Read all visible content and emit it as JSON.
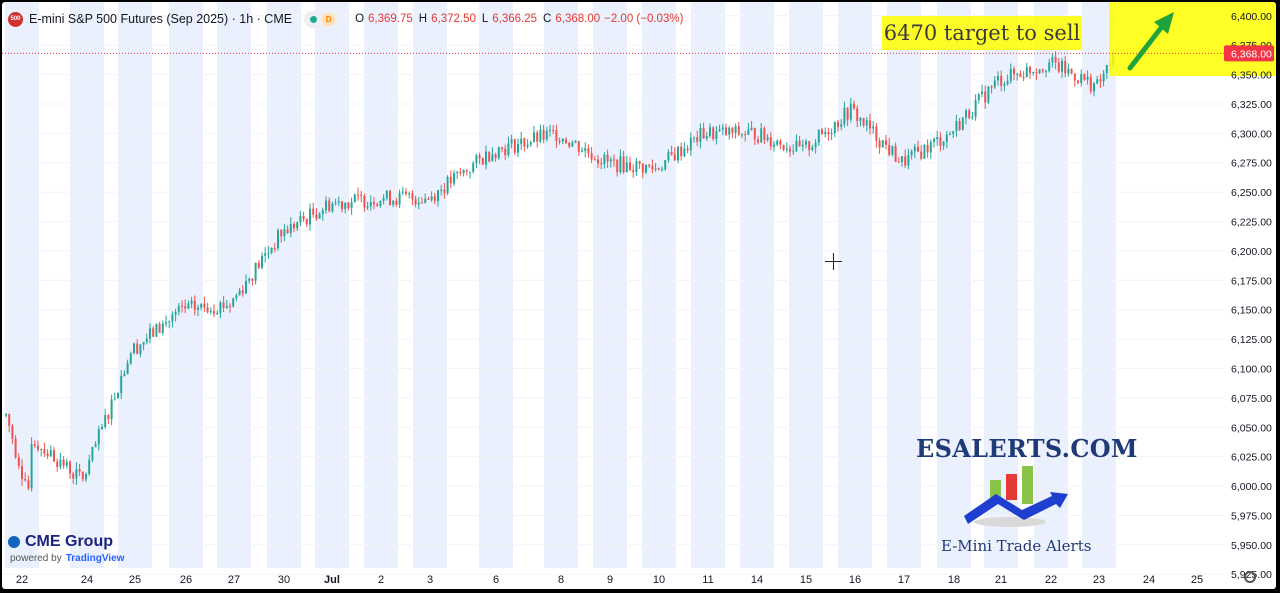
{
  "header": {
    "logo_text": "500",
    "title": "E-mini S&P 500 Futures (Sep 2025) · 1h · CME",
    "delay_badge": "D",
    "ohlc": [
      {
        "key": "O",
        "value": "6,369.75"
      },
      {
        "key": "H",
        "value": "6,372.50"
      },
      {
        "key": "L",
        "value": "6,366.25"
      },
      {
        "key": "C",
        "value": "6,368.00"
      }
    ],
    "change": "−2.00 (−0.03%)"
  },
  "annotation": {
    "text": "6470 target to sell",
    "highlight_color": "#ffff00",
    "arrow_color": "#1fa33a"
  },
  "branding": {
    "site": "ESALERTS.COM",
    "tagline": "E-Mini Trade Alerts",
    "data_provider": "CME Group",
    "powered_by": "powered by",
    "platform": "TradingView"
  },
  "price_label": "6,368.00",
  "colors": {
    "up": "#26a69a",
    "down": "#ef5350",
    "session_band": "#eaf0fd",
    "price_label_bg": "#f23645"
  },
  "icons": [
    "cme-globe-icon",
    "tradingview-icon",
    "settings-gear-icon",
    "crosshair-icon",
    "arrow-up-right-icon"
  ],
  "chart_data": {
    "type": "candlestick",
    "timeframe": "1h",
    "price_axis": {
      "min": 5915,
      "max": 6410,
      "ticks": [
        "6,400.00",
        "6,375.00",
        "6,350.00",
        "6,325.00",
        "6,300.00",
        "6,275.00",
        "6,250.00",
        "6,225.00",
        "6,200.00",
        "6,175.00",
        "6,150.00",
        "6,125.00",
        "6,100.00",
        "6,075.00",
        "6,050.00",
        "6,025.00",
        "6,000.00",
        "5,975.00",
        "5,950.00",
        "5,925.00"
      ]
    },
    "time_axis": {
      "labels": [
        "22",
        "24",
        "25",
        "26",
        "27",
        "30",
        "Jul",
        "2",
        "3",
        "6",
        "8",
        "9",
        "10",
        "11",
        "14",
        "15",
        "16",
        "17",
        "18",
        "21",
        "22",
        "23",
        "24",
        "25"
      ]
    },
    "last_price": 6368.0,
    "target_price": 6470,
    "approx_close_path": [
      {
        "label": "22",
        "close": 6005
      },
      {
        "label": "24",
        "close": 6115
      },
      {
        "label": "25",
        "close": 6150
      },
      {
        "label": "26",
        "close": 6155
      },
      {
        "label": "27",
        "close": 6215
      },
      {
        "label": "30",
        "close": 6240
      },
      {
        "label": "Jul",
        "close": 6245
      },
      {
        "label": "2",
        "close": 6245
      },
      {
        "label": "3",
        "close": 6285
      },
      {
        "label": "6",
        "close": 6300
      },
      {
        "label": "8",
        "close": 6275
      },
      {
        "label": "9",
        "close": 6270
      },
      {
        "label": "10",
        "close": 6300
      },
      {
        "label": "11",
        "close": 6300
      },
      {
        "label": "14",
        "close": 6285
      },
      {
        "label": "15",
        "close": 6320
      },
      {
        "label": "16",
        "close": 6275
      },
      {
        "label": "17",
        "close": 6300
      },
      {
        "label": "18",
        "close": 6345
      },
      {
        "label": "21",
        "close": 6360
      },
      {
        "label": "22",
        "close": 6340
      },
      {
        "label": "23",
        "close": 6368
      }
    ]
  }
}
